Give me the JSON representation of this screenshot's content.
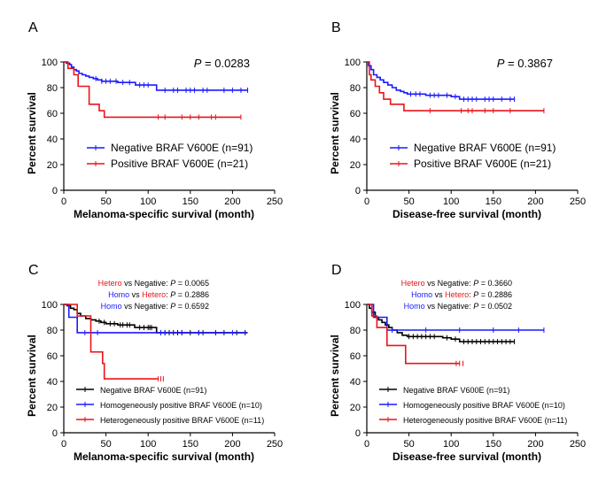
{
  "chart_data": [
    {
      "type": "line",
      "panel_label": "A",
      "xlabel": "Melanoma-specific survival (month)",
      "ylabel": "Percent survival",
      "xlim": [
        0,
        250
      ],
      "ylim": [
        0,
        100
      ],
      "x_ticks": [
        0,
        50,
        100,
        150,
        200,
        250
      ],
      "y_ticks": [
        0,
        20,
        40,
        60,
        80,
        100
      ],
      "p_italic": "P",
      "p_text": " = 0.0283",
      "legend_style": "large",
      "annotations": [],
      "series": [
        {
          "name": "Negative BRAF V600E (n=91)",
          "color": "#1a1aff",
          "steps": [
            [
              0,
              100
            ],
            [
              3,
              99
            ],
            [
              7,
              98
            ],
            [
              9,
              96
            ],
            [
              12,
              94
            ],
            [
              15,
              93
            ],
            [
              18,
              91
            ],
            [
              22,
              90
            ],
            [
              26,
              89
            ],
            [
              30,
              88
            ],
            [
              35,
              87
            ],
            [
              40,
              86
            ],
            [
              45,
              85
            ],
            [
              60,
              85
            ],
            [
              64,
              84
            ],
            [
              75,
              84
            ],
            [
              85,
              82
            ],
            [
              108,
              82
            ],
            [
              110,
              78
            ],
            [
              218,
              78
            ]
          ],
          "censors": [
            38,
            45,
            50,
            55,
            62,
            70,
            78,
            90,
            95,
            100,
            120,
            130,
            135,
            145,
            150,
            155,
            165,
            170,
            190,
            200,
            210,
            218
          ]
        },
        {
          "name": "Positive BRAF V600E (n=21)",
          "color": "#e8141a",
          "steps": [
            [
              0,
              100
            ],
            [
              5,
              95
            ],
            [
              12,
              90
            ],
            [
              17,
              81
            ],
            [
              28,
              81
            ],
            [
              30,
              67
            ],
            [
              38,
              67
            ],
            [
              42,
              62
            ],
            [
              48,
              57
            ],
            [
              210,
              57
            ]
          ],
          "censors": [
            112,
            120,
            140,
            150,
            160,
            175,
            180,
            210
          ]
        }
      ]
    },
    {
      "type": "line",
      "panel_label": "B",
      "xlabel": "Disease-free survival (month)",
      "ylabel": "Percent survival",
      "xlim": [
        0,
        250
      ],
      "ylim": [
        0,
        100
      ],
      "x_ticks": [
        0,
        50,
        100,
        150,
        200,
        250
      ],
      "y_ticks": [
        0,
        20,
        40,
        60,
        80,
        100
      ],
      "p_italic": "P",
      "p_text": " = 0.3867",
      "legend_style": "large",
      "annotations": [],
      "series": [
        {
          "name": "Negative BRAF V600E (n=91)",
          "color": "#1a1aff",
          "steps": [
            [
              0,
              100
            ],
            [
              2,
              97
            ],
            [
              5,
              94
            ],
            [
              8,
              90
            ],
            [
              12,
              88
            ],
            [
              16,
              86
            ],
            [
              20,
              84
            ],
            [
              25,
              82
            ],
            [
              30,
              80
            ],
            [
              35,
              78
            ],
            [
              40,
              77
            ],
            [
              44,
              76
            ],
            [
              48,
              75
            ],
            [
              65,
              75
            ],
            [
              70,
              74
            ],
            [
              90,
              74
            ],
            [
              100,
              73
            ],
            [
              110,
              71
            ],
            [
              175,
              71
            ]
          ],
          "censors": [
            52,
            58,
            63,
            75,
            80,
            85,
            95,
            105,
            115,
            120,
            125,
            130,
            140,
            145,
            150,
            160,
            170,
            175
          ]
        },
        {
          "name": "Positive BRAF V600E (n=21)",
          "color": "#e8141a",
          "steps": [
            [
              0,
              100
            ],
            [
              3,
              90
            ],
            [
              5,
              86
            ],
            [
              10,
              81
            ],
            [
              15,
              76
            ],
            [
              20,
              71
            ],
            [
              28,
              67
            ],
            [
              44,
              62
            ],
            [
              210,
              62
            ]
          ],
          "censors": [
            75,
            112,
            120,
            125,
            140,
            150,
            170,
            210
          ]
        }
      ]
    },
    {
      "type": "line",
      "panel_label": "C",
      "xlabel": "Melanoma-specific survival (month)",
      "ylabel": "Percent survival",
      "xlim": [
        0,
        250
      ],
      "ylim": [
        0,
        100
      ],
      "x_ticks": [
        0,
        50,
        100,
        150,
        200,
        250
      ],
      "y_ticks": [
        0,
        20,
        40,
        60,
        80,
        100
      ],
      "p_italic": "",
      "p_text": "",
      "legend_style": "small",
      "annotations": [
        {
          "parts": [
            {
              "t": "Hetero",
              "c": "#e8141a"
            },
            {
              "t": " vs Negative: ",
              "c": "#000000"
            },
            {
              "t": "P",
              "c": "#000000",
              "i": true
            },
            {
              "t": " = 0.0065",
              "c": "#000000"
            }
          ]
        },
        {
          "parts": [
            {
              "t": "Homo",
              "c": "#1a1aff"
            },
            {
              "t": " vs ",
              "c": "#000000"
            },
            {
              "t": "Hetero",
              "c": "#e8141a"
            },
            {
              "t": ": ",
              "c": "#000000"
            },
            {
              "t": "P",
              "c": "#000000",
              "i": true
            },
            {
              "t": " = 0.2886",
              "c": "#000000"
            }
          ]
        },
        {
          "parts": [
            {
              "t": "Homo",
              "c": "#1a1aff"
            },
            {
              "t": " vs Negative: ",
              "c": "#000000"
            },
            {
              "t": "P",
              "c": "#000000",
              "i": true
            },
            {
              "t": " = 0.6592",
              "c": "#000000"
            }
          ]
        }
      ],
      "series": [
        {
          "name": "Negative BRAF V600E (n=91)",
          "color": "#000000",
          "steps": [
            [
              0,
              100
            ],
            [
              4,
              99
            ],
            [
              8,
              97
            ],
            [
              12,
              96
            ],
            [
              16,
              93
            ],
            [
              20,
              91
            ],
            [
              26,
              89
            ],
            [
              32,
              88
            ],
            [
              38,
              87
            ],
            [
              44,
              86
            ],
            [
              50,
              85
            ],
            [
              60,
              85
            ],
            [
              64,
              84
            ],
            [
              80,
              84
            ],
            [
              84,
              82
            ],
            [
              106,
              82
            ],
            [
              110,
              78
            ],
            [
              218,
              78
            ]
          ],
          "censors": [
            42,
            48,
            55,
            60,
            67,
            70,
            75,
            78,
            90,
            95,
            100,
            102,
            104,
            115,
            120,
            125,
            130,
            135,
            140,
            150,
            160,
            165,
            180,
            190,
            205,
            215
          ]
        },
        {
          "name": "Homogeneously positive BRAF V600E (n=10)",
          "color": "#1a1aff",
          "steps": [
            [
              0,
              100
            ],
            [
              6,
              90
            ],
            [
              16,
              78
            ],
            [
              218,
              78
            ]
          ],
          "censors": [
            25,
            40,
            115,
            120,
            140,
            160,
            200
          ]
        },
        {
          "name": "Heterogeneously positive BRAF V600E (n=11)",
          "color": "#e8141a",
          "steps": [
            [
              0,
              100
            ],
            [
              14,
              100
            ],
            [
              16,
              91
            ],
            [
              30,
              91
            ],
            [
              32,
              63
            ],
            [
              44,
              63
            ],
            [
              46,
              54
            ],
            [
              48,
              42
            ],
            [
              112,
              42
            ]
          ],
          "censors": [
            112,
            115,
            118
          ]
        }
      ]
    },
    {
      "type": "line",
      "panel_label": "D",
      "xlabel": "Disease-free survival (month)",
      "ylabel": "Percent survival",
      "xlim": [
        0,
        250
      ],
      "ylim": [
        0,
        100
      ],
      "x_ticks": [
        0,
        50,
        100,
        150,
        200,
        250
      ],
      "y_ticks": [
        0,
        20,
        40,
        60,
        80,
        100
      ],
      "p_italic": "",
      "p_text": "",
      "legend_style": "small",
      "annotations": [
        {
          "parts": [
            {
              "t": "Hetero",
              "c": "#e8141a"
            },
            {
              "t": " vs Negative: ",
              "c": "#000000"
            },
            {
              "t": "P",
              "c": "#000000",
              "i": true
            },
            {
              "t": " = 0.3660",
              "c": "#000000"
            }
          ]
        },
        {
          "parts": [
            {
              "t": "Homo",
              "c": "#1a1aff"
            },
            {
              "t": " vs ",
              "c": "#000000"
            },
            {
              "t": "Hetero",
              "c": "#e8141a"
            },
            {
              "t": ": ",
              "c": "#000000"
            },
            {
              "t": "P",
              "c": "#000000",
              "i": true
            },
            {
              "t": " = 0.2886",
              "c": "#000000"
            }
          ]
        },
        {
          "parts": [
            {
              "t": "Homo",
              "c": "#1a1aff"
            },
            {
              "t": " vs Negative: ",
              "c": "#000000"
            },
            {
              "t": "P",
              "c": "#000000",
              "i": true
            },
            {
              "t": " = 0.0502",
              "c": "#000000"
            }
          ]
        }
      ],
      "series": [
        {
          "name": "Negative BRAF V600E (n=91)",
          "color": "#000000",
          "steps": [
            [
              0,
              100
            ],
            [
              3,
              97
            ],
            [
              6,
              94
            ],
            [
              10,
              90
            ],
            [
              14,
              88
            ],
            [
              18,
              86
            ],
            [
              22,
              84
            ],
            [
              26,
              82
            ],
            [
              30,
              80
            ],
            [
              36,
              78
            ],
            [
              42,
              76
            ],
            [
              48,
              75
            ],
            [
              85,
              75
            ],
            [
              90,
              74
            ],
            [
              100,
              73
            ],
            [
              110,
              71
            ],
            [
              175,
              71
            ]
          ],
          "censors": [
            50,
            55,
            60,
            65,
            70,
            75,
            80,
            95,
            105,
            115,
            120,
            125,
            130,
            135,
            140,
            145,
            150,
            155,
            160,
            165,
            170,
            175
          ]
        },
        {
          "name": "Homogeneously positive BRAF V600E (n=10)",
          "color": "#1a1aff",
          "steps": [
            [
              0,
              100
            ],
            [
              8,
              90
            ],
            [
              24,
              80
            ],
            [
              210,
              80
            ]
          ],
          "censors": [
            30,
            70,
            110,
            150,
            180,
            210
          ]
        },
        {
          "name": "Heterogeneously positive BRAF V600E (n=11)",
          "color": "#e8141a",
          "steps": [
            [
              0,
              100
            ],
            [
              6,
              91
            ],
            [
              12,
              82
            ],
            [
              20,
              82
            ],
            [
              24,
              68
            ],
            [
              44,
              68
            ],
            [
              46,
              54
            ],
            [
              110,
              54
            ]
          ],
          "censors": [
            106,
            110,
            114
          ]
        }
      ]
    }
  ]
}
